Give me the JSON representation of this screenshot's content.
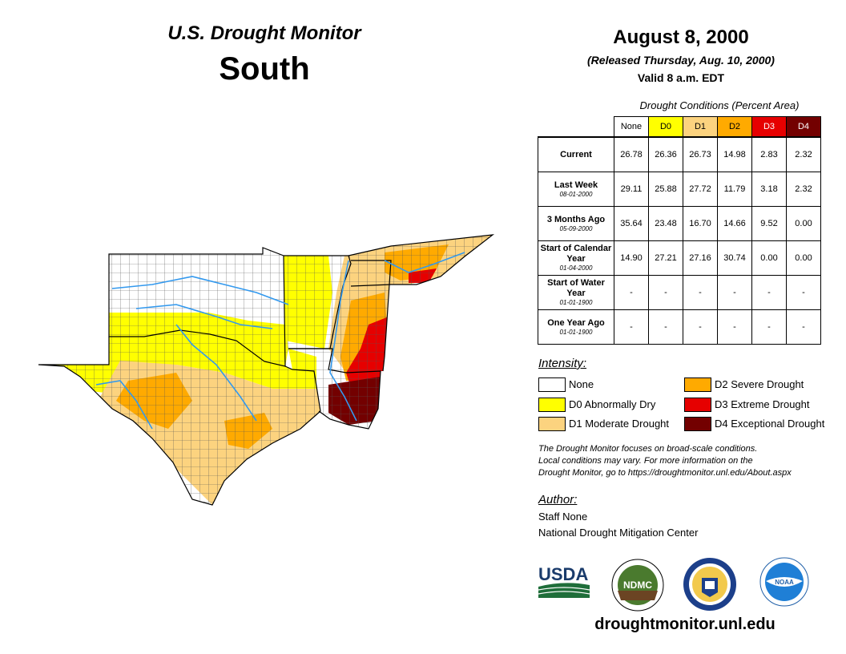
{
  "header": {
    "line1": "U.S. Drought Monitor",
    "line2": "South",
    "date": "August 8, 2000",
    "released": "(Released Thursday, Aug. 10, 2000)",
    "valid": "Valid 8 a.m. EDT"
  },
  "table": {
    "caption": "Drought Conditions (Percent Area)",
    "columns": [
      "None",
      "D0",
      "D1",
      "D2",
      "D3",
      "D4"
    ],
    "column_colors": [
      "#ffffff",
      "#ffff00",
      "#fcd37f",
      "#ffaa00",
      "#e60000",
      "#730000"
    ],
    "column_text_colors": [
      "#000000",
      "#000000",
      "#000000",
      "#000000",
      "#ffffff",
      "#ffffff"
    ],
    "rows": [
      {
        "label": "Current",
        "date": "",
        "values": [
          "26.78",
          "26.36",
          "26.73",
          "14.98",
          "2.83",
          "2.32"
        ]
      },
      {
        "label": "Last Week",
        "date": "08-01-2000",
        "values": [
          "29.11",
          "25.88",
          "27.72",
          "11.79",
          "3.18",
          "2.32"
        ]
      },
      {
        "label": "3 Months Ago",
        "date": "05-09-2000",
        "values": [
          "35.64",
          "23.48",
          "16.70",
          "14.66",
          "9.52",
          "0.00"
        ]
      },
      {
        "label": "Start of Calendar Year",
        "date": "01-04-2000",
        "values": [
          "14.90",
          "27.21",
          "27.16",
          "30.74",
          "0.00",
          "0.00"
        ]
      },
      {
        "label": "Start of Water Year",
        "date": "01-01-1900",
        "values": [
          "-",
          "-",
          "-",
          "-",
          "-",
          "-"
        ]
      },
      {
        "label": "One Year Ago",
        "date": "01-01-1900",
        "values": [
          "-",
          "-",
          "-",
          "-",
          "-",
          "-"
        ]
      }
    ]
  },
  "legend": {
    "title": "Intensity:",
    "items": [
      {
        "label": "None",
        "color": "#ffffff"
      },
      {
        "label": "D0 Abnormally Dry",
        "color": "#ffff00"
      },
      {
        "label": "D1 Moderate Drought",
        "color": "#fcd37f"
      },
      {
        "label": "D2 Severe Drought",
        "color": "#ffaa00"
      },
      {
        "label": "D3 Extreme Drought",
        "color": "#e60000"
      },
      {
        "label": "D4 Exceptional Drought",
        "color": "#730000"
      }
    ]
  },
  "note": {
    "line1": "The Drought Monitor focuses on broad-scale conditions.",
    "line2": "Local conditions may vary. For more information on the",
    "line3": "Drought Monitor, go to https://droughtmonitor.unl.edu/About.aspx"
  },
  "author": {
    "title": "Author:",
    "name": "Staff None",
    "org": "National Drought Mitigation Center"
  },
  "logos": {
    "usda": "USDA",
    "ndmc": "NDMC",
    "noaa": "NOAA"
  },
  "footer": {
    "url": "droughtmonitor.unl.edu"
  },
  "colors": {
    "river": "#3399ee",
    "county_line": "#555555",
    "state_line": "#000000"
  }
}
